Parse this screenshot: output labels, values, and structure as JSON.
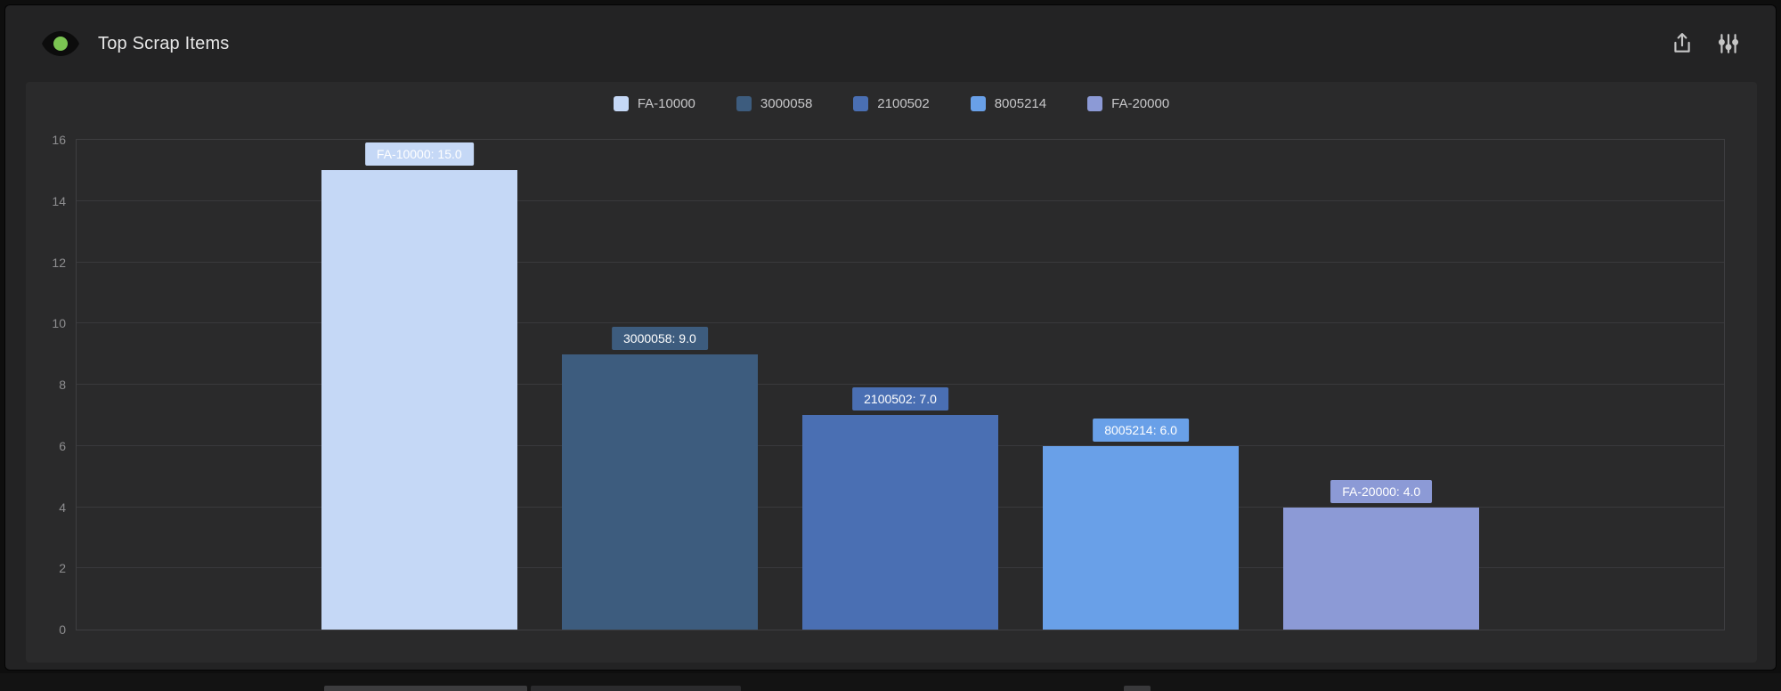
{
  "window": {
    "title": "Top Scrap Items"
  },
  "header": {
    "status_icon": "eye-with-green-dot",
    "export_button": "export",
    "settings_button": "sliders"
  },
  "colors": {
    "window_bg": "#232324",
    "card_bg": "#2a2a2b",
    "grid": "#3e3e41",
    "title_text": "#e6e6e6",
    "tick_text": "#8e8e90",
    "legend_text": "#c7c7c9",
    "status_green": "#7bc552"
  },
  "chart_data": {
    "type": "bar",
    "title": "Top Scrap Items",
    "categories": [
      "FA-10000",
      "3000058",
      "2100502",
      "8005214",
      "FA-20000"
    ],
    "values": [
      15.0,
      9.0,
      7.0,
      6.0,
      4.0
    ],
    "bar_labels": [
      "FA-10000: 15.0",
      "3000058: 9.0",
      "2100502: 7.0",
      "8005214: 6.0",
      "FA-20000: 4.0"
    ],
    "colors": [
      "#c5d8f6",
      "#3d5c7e",
      "#4a6fb3",
      "#69a0e8",
      "#8c9ad6"
    ],
    "legend": [
      "FA-10000",
      "3000058",
      "2100502",
      "8005214",
      "FA-20000"
    ],
    "legend_position": "top",
    "xlabel": "",
    "ylabel": "",
    "ylim": [
      0,
      16
    ],
    "yticks": [
      0,
      2,
      4,
      6,
      8,
      10,
      12,
      14,
      16
    ],
    "grid": true
  }
}
